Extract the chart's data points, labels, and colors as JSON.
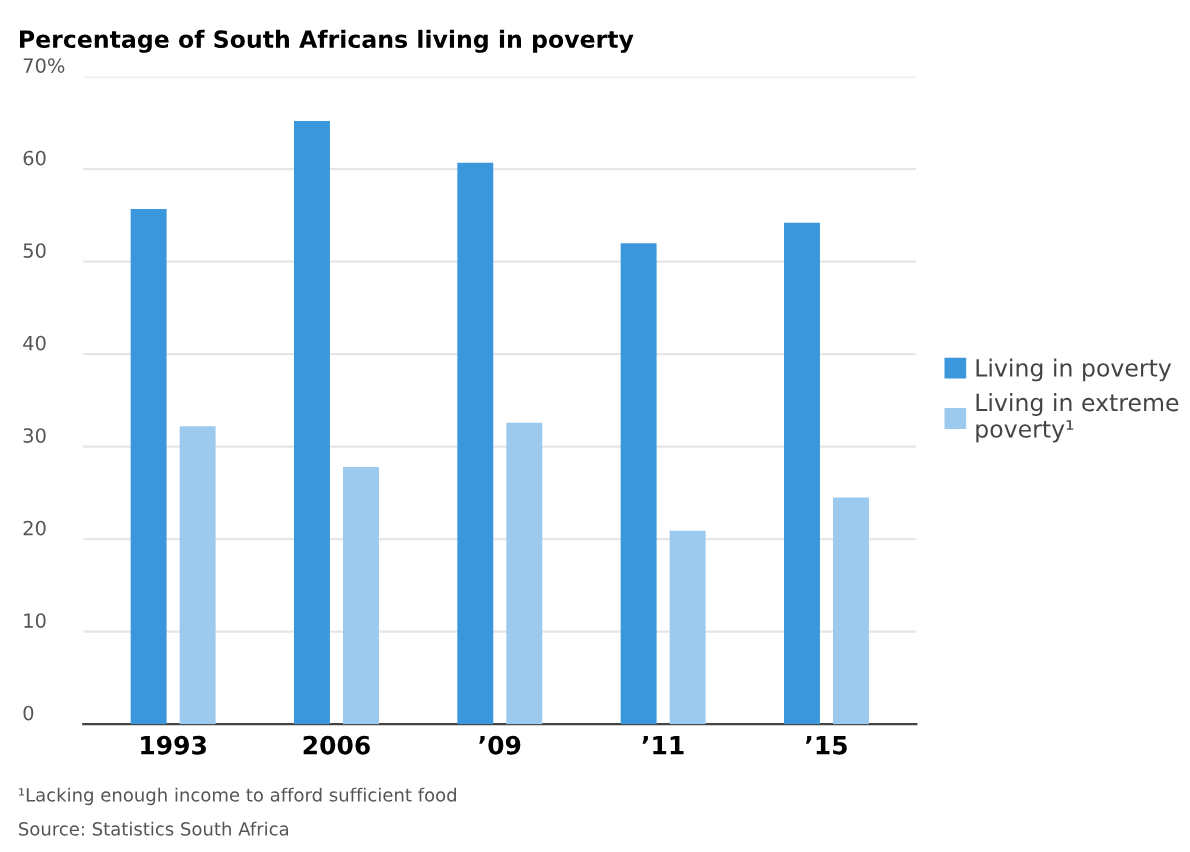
{
  "chart_data": {
    "type": "bar",
    "title": "Percentage of South Africans living in poverty",
    "categories": [
      "1993",
      "2006",
      "’09",
      "’11",
      "’15"
    ],
    "series": [
      {
        "name": "Living in poverty",
        "color": "#3a97db",
        "values": [
          55.7,
          65.2,
          60.7,
          52.0,
          54.2
        ]
      },
      {
        "name": "Living in extreme poverty¹",
        "color": "#9ccaee",
        "values": [
          32.2,
          27.8,
          32.6,
          20.9,
          24.5
        ]
      }
    ],
    "ylim": [
      0,
      70
    ],
    "yticks": [
      0,
      10,
      20,
      30,
      40,
      50,
      {
        "value": 70,
        "label": "70%"
      },
      60
    ],
    "grid": "y",
    "legend": "right",
    "annotations": [
      "¹Lacking enough income to afford sufficient food",
      "Source: Statistics South Africa"
    ]
  }
}
